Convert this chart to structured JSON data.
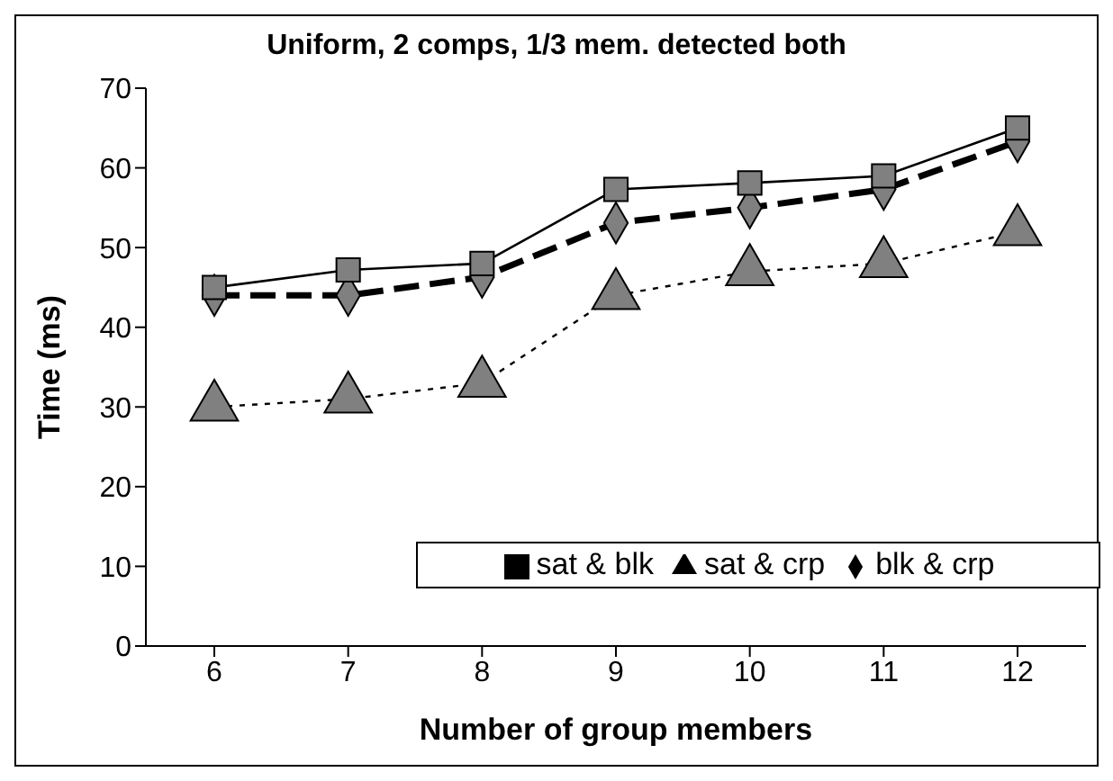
{
  "chart_data": {
    "type": "line",
    "title": "Uniform, 2 comps, 1/3 mem. detected both",
    "xlabel": "Number of group members",
    "ylabel": "Time (ms)",
    "categories": [
      "6",
      "7",
      "8",
      "9",
      "10",
      "11",
      "12"
    ],
    "ylim": [
      0,
      70
    ],
    "yticks": [
      0,
      10,
      20,
      30,
      40,
      50,
      60,
      70
    ],
    "legend": "bottom right",
    "series": [
      {
        "name": "sat & blk",
        "color": "#000000",
        "marker": "square",
        "line_style": "solid",
        "values": [
          45,
          47.2,
          48,
          57.3,
          58.1,
          59,
          65
        ]
      },
      {
        "name": "sat & crp",
        "color": "#000000",
        "marker": "triangle",
        "line_style": "dotted",
        "values": [
          30,
          31,
          33,
          44,
          47,
          48,
          52
        ]
      },
      {
        "name": "blk & crp",
        "color": "#000000",
        "marker": "diamond",
        "line_style": "dashed",
        "values": [
          44,
          44,
          46.3,
          53.1,
          55,
          57.3,
          63.3
        ]
      }
    ]
  }
}
